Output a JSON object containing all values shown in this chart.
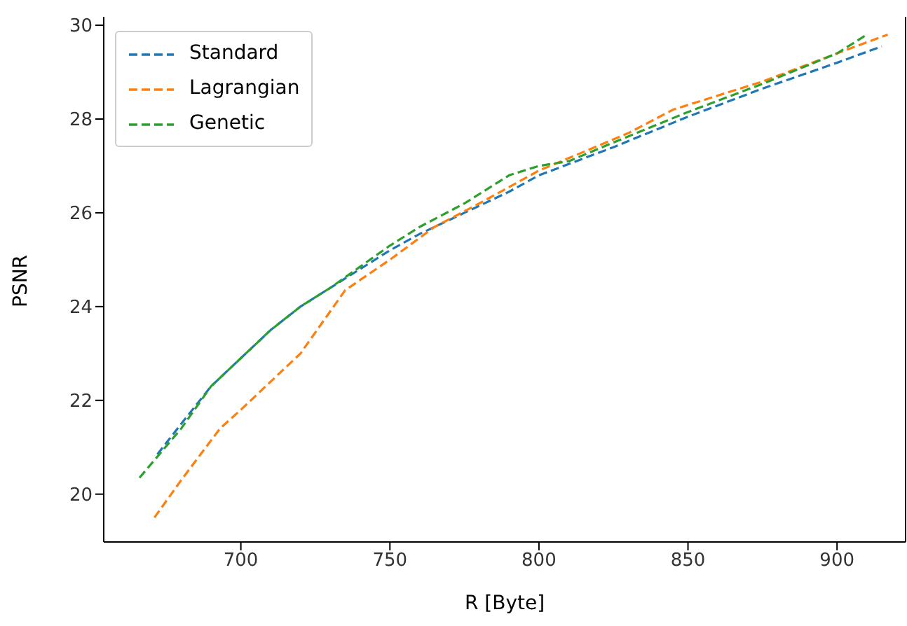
{
  "chart_data": {
    "type": "line",
    "xlabel": "R [Byte]",
    "ylabel": "PSNR",
    "xlim": [
      654,
      923
    ],
    "ylim": [
      18.98,
      30.18
    ],
    "xticks": [
      700,
      750,
      800,
      850,
      900
    ],
    "yticks": [
      20,
      22,
      24,
      26,
      28,
      30
    ],
    "grid": false,
    "legend": "top left",
    "marker": "none",
    "line_style": "dashed",
    "series": [
      {
        "name": "Standard",
        "color": "#1f77b4",
        "x": [
          672,
          680,
          690,
          700,
          710,
          720,
          730,
          740,
          750,
          760,
          775,
          790,
          800,
          825,
          850,
          875,
          900,
          915
        ],
        "values": [
          20.85,
          21.5,
          22.3,
          22.9,
          23.5,
          24.0,
          24.4,
          24.8,
          25.2,
          25.55,
          26.0,
          26.45,
          26.8,
          27.4,
          28.05,
          28.65,
          29.2,
          29.55
        ]
      },
      {
        "name": "Lagrangian",
        "color": "#ff7f0e",
        "x": [
          671,
          680,
          693,
          700,
          720,
          735,
          750,
          765,
          780,
          800,
          815,
          830,
          845,
          855,
          875,
          900,
          917
        ],
        "values": [
          19.5,
          20.3,
          21.4,
          21.8,
          23.0,
          24.35,
          25.0,
          25.7,
          26.2,
          26.9,
          27.3,
          27.7,
          28.2,
          28.4,
          28.8,
          29.4,
          29.8
        ]
      },
      {
        "name": "Genetic",
        "color": "#2ca02c",
        "x": [
          666,
          672,
          680,
          690,
          700,
          710,
          720,
          730,
          740,
          750,
          760,
          775,
          790,
          800,
          810,
          825,
          850,
          875,
          900,
          910
        ],
        "values": [
          20.35,
          20.8,
          21.4,
          22.3,
          22.9,
          23.5,
          24.0,
          24.4,
          24.85,
          25.3,
          25.7,
          26.2,
          26.8,
          27.0,
          27.1,
          27.5,
          28.15,
          28.75,
          29.4,
          29.8
        ]
      }
    ]
  }
}
